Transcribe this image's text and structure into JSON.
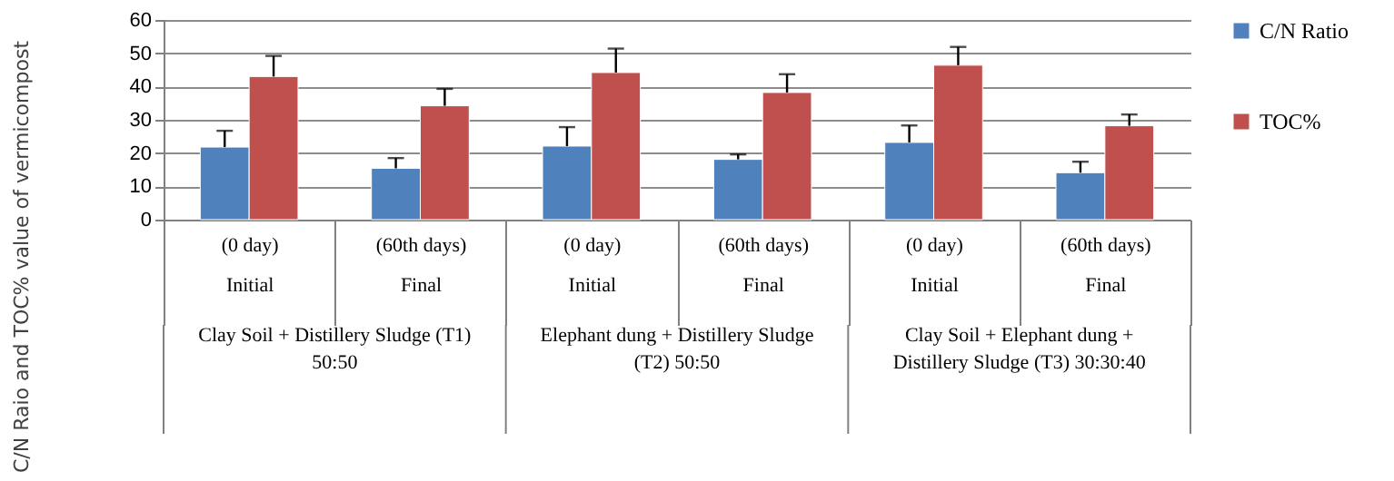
{
  "chart_data": {
    "type": "bar",
    "ylabel": "C/N Raio and TOC% value of vermicompost",
    "categories": [
      "(0 day)\nInitial",
      "(60th days)\nFinal",
      "(0 day)\nInitial",
      "(60th days)\nFinal",
      "(0 day)\nInitial",
      "(60th days)\nFinal"
    ],
    "series": [
      {
        "name": "C/N Ratio",
        "color": "#4f81bd",
        "values": [
          21.8,
          15.4,
          22.1,
          18.1,
          23.2,
          14.1
        ],
        "errors": [
          [
            21.8,
            26.7
          ],
          [
            15.4,
            18.5
          ],
          [
            22.1,
            27.8
          ],
          [
            18.1,
            19.6
          ],
          [
            23.2,
            28.3
          ],
          [
            14.1,
            17.4
          ]
        ]
      },
      {
        "name": "TOC%",
        "color": "#c0504d",
        "values": [
          43.0,
          34.2,
          44.2,
          38.2,
          46.4,
          28.2
        ],
        "errors": [
          [
            43.0,
            49.2
          ],
          [
            34.2,
            39.3
          ],
          [
            44.2,
            51.4
          ],
          [
            38.2,
            43.7
          ],
          [
            46.4,
            51.9
          ],
          [
            28.2,
            31.6
          ]
        ]
      }
    ],
    "annotations": [
      "Clay Soil + Distillery Sludge  (T1)\n50:50",
      "Elephant dung + Distillery Sludge\n(T2) 50:50",
      "Clay Soil + Elephant dung +\nDistillery Sludge (T3) 30:30:40"
    ],
    "ylim": [
      0,
      60
    ],
    "yticks": [
      0,
      10,
      20,
      30,
      40,
      50,
      60
    ],
    "grid": "y",
    "legend": "right"
  }
}
